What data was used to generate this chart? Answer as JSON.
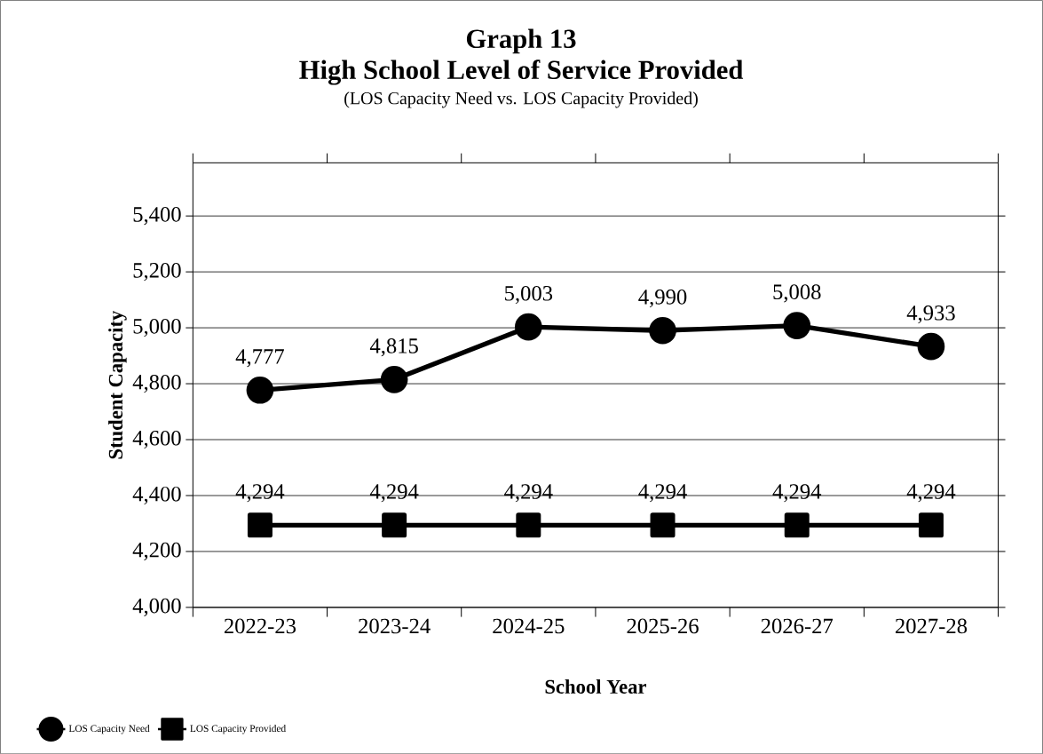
{
  "chart_data": {
    "type": "line",
    "title": "Graph 13",
    "subtitle": "High School Level of Service Provided",
    "annotations": [
      "(LOS Capacity Need vs. LOS Capacity Provided)"
    ],
    "xlabel": "School Year",
    "ylabel": "Student Capacity",
    "categories": [
      "2022-23",
      "2023-24",
      "2024-25",
      "2025-26",
      "2026-27",
      "2027-28"
    ],
    "series": [
      {
        "name": "LOS Capacity Need",
        "color": "#000000",
        "marker": "circle",
        "values": [
          4777,
          4815,
          5003,
          4990,
          5008,
          4933
        ],
        "value_labels": [
          "4,777",
          "4,815",
          "5,003",
          "4,990",
          "5,008",
          "4,933"
        ]
      },
      {
        "name": "LOS Capacity Provided",
        "color": "#000000",
        "marker": "square",
        "values": [
          4294,
          4294,
          4294,
          4294,
          4294,
          4294
        ],
        "value_labels": [
          "4,294",
          "4,294",
          "4,294",
          "4,294",
          "4,294",
          "4,294"
        ]
      }
    ],
    "ylim": [
      4000,
      5590
    ],
    "yticks": [
      {
        "value": 4000,
        "label": "4,000"
      },
      {
        "value": 4200,
        "label": "4,200"
      },
      {
        "value": 4400,
        "label": "4,400"
      },
      {
        "value": 4600,
        "label": "4,600"
      },
      {
        "value": 4800,
        "label": "4,800"
      },
      {
        "value": 5000,
        "label": "5,000"
      },
      {
        "value": 5200,
        "label": "5,200"
      },
      {
        "value": 5400,
        "label": "5,400"
      }
    ],
    "grid": "y",
    "legend": "bottom left",
    "line_style": "solid"
  }
}
